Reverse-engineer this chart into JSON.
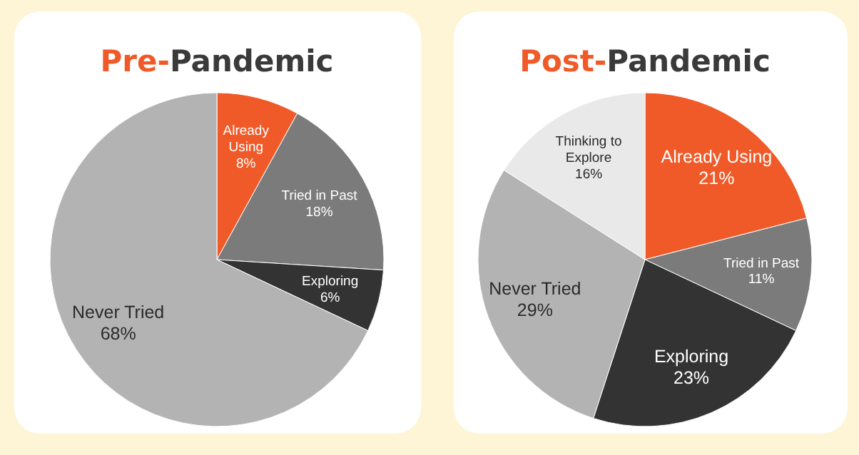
{
  "chart_data": [
    {
      "type": "pie",
      "title": "Pre-Pandemic",
      "categories": [
        "Already Using",
        "Tried in Past",
        "Exploring",
        "Never Tried"
      ],
      "values": [
        8,
        18,
        6,
        68
      ],
      "colors": [
        "#f05a28",
        "#7b7b7b",
        "#333333",
        "#b3b3b3"
      ],
      "value_labels": [
        "8%",
        "18%",
        "6%",
        "68%"
      ]
    },
    {
      "type": "pie",
      "title": "Post-Pandemic",
      "categories": [
        "Already Using",
        "Tried in Past",
        "Exploring",
        "Never Tried",
        "Thinking to Explore"
      ],
      "values": [
        21,
        11,
        23,
        29,
        16
      ],
      "colors": [
        "#f05a28",
        "#7b7b7b",
        "#333333",
        "#b3b3b3",
        "#e9e9e9"
      ],
      "value_labels": [
        "21%",
        "11%",
        "23%",
        "29%",
        "16%"
      ]
    }
  ]
}
